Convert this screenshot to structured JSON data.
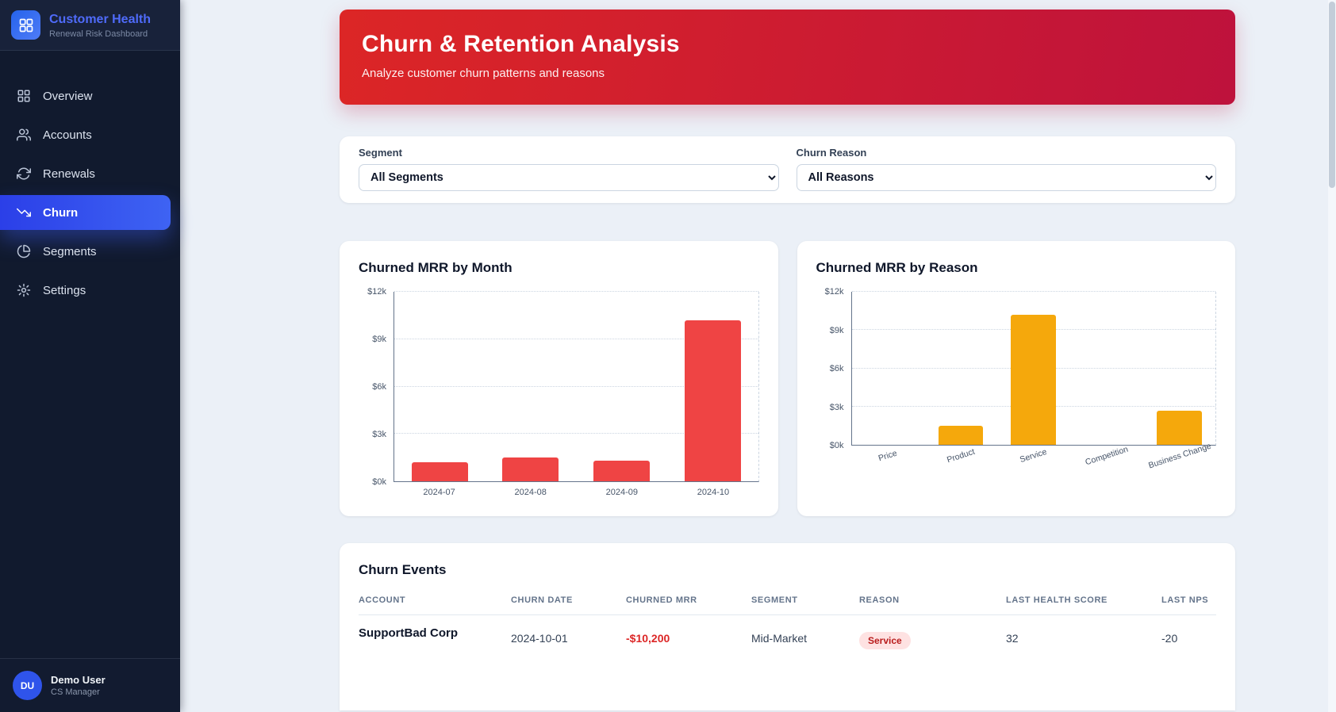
{
  "sidebar": {
    "logo_title": "Customer Health",
    "logo_subtitle": "Renewal Risk Dashboard",
    "items": [
      {
        "label": "Overview",
        "icon": "grid-icon",
        "active": false
      },
      {
        "label": "Accounts",
        "icon": "users-icon",
        "active": false
      },
      {
        "label": "Renewals",
        "icon": "refresh-icon",
        "active": false
      },
      {
        "label": "Churn",
        "icon": "trending-down-icon",
        "active": true
      },
      {
        "label": "Segments",
        "icon": "pie-chart-icon",
        "active": false
      },
      {
        "label": "Settings",
        "icon": "gear-icon",
        "active": false
      }
    ],
    "user": {
      "initials": "DU",
      "name": "Demo User",
      "role": "CS Manager"
    }
  },
  "banner": {
    "title": "Churn & Retention Analysis",
    "subtitle": "Analyze customer churn patterns and reasons"
  },
  "filters": {
    "segment": {
      "label": "Segment",
      "value": "All Segments"
    },
    "reason": {
      "label": "Churn Reason",
      "value": "All Reasons"
    }
  },
  "chart_data": [
    {
      "type": "bar",
      "title": "Churned MRR by Month",
      "categories": [
        "2024-07",
        "2024-08",
        "2024-09",
        "2024-10"
      ],
      "values": [
        1200,
        1500,
        1300,
        10200
      ],
      "bar_color": "#ef4444",
      "ylim": [
        0,
        12000
      ],
      "yticks": [
        0,
        3000,
        6000,
        9000,
        12000
      ],
      "ytick_labels": [
        "$0k",
        "$3k",
        "$6k",
        "$9k",
        "$12k"
      ],
      "x_label_rotation": 0,
      "grid": "dotted",
      "legend": "none"
    },
    {
      "type": "bar",
      "title": "Churned MRR by Reason",
      "categories": [
        "Price",
        "Product",
        "Service",
        "Competition",
        "Business Change"
      ],
      "values": [
        0,
        1500,
        10200,
        0,
        2700
      ],
      "bar_color": "#f5a80c",
      "ylim": [
        0,
        12000
      ],
      "yticks": [
        0,
        3000,
        6000,
        9000,
        12000
      ],
      "ytick_labels": [
        "$0k",
        "$3k",
        "$6k",
        "$9k",
        "$12k"
      ],
      "x_label_rotation": -18,
      "grid": "dotted",
      "legend": "none"
    }
  ],
  "table": {
    "title": "Churn Events",
    "columns": [
      "ACCOUNT",
      "CHURN DATE",
      "CHURNED MRR",
      "SEGMENT",
      "REASON",
      "LAST HEALTH SCORE",
      "LAST NPS"
    ],
    "rows": [
      {
        "account": "SupportBad Corp",
        "churn_date": "2024-10-01",
        "churned_mrr": "-$10,200",
        "segment": "Mid-Market",
        "reason": "Service",
        "last_health_score": "32",
        "last_nps": "-20"
      }
    ]
  },
  "colors": {
    "banner_gradient_start": "#dc2626",
    "banner_gradient_end": "#be123c",
    "sidebar_bg": "#111a2e",
    "active_nav": "#3e63f3",
    "month_bar": "#ef4444",
    "reason_bar": "#f5a80c",
    "mrr_negative": "#dc2626"
  }
}
